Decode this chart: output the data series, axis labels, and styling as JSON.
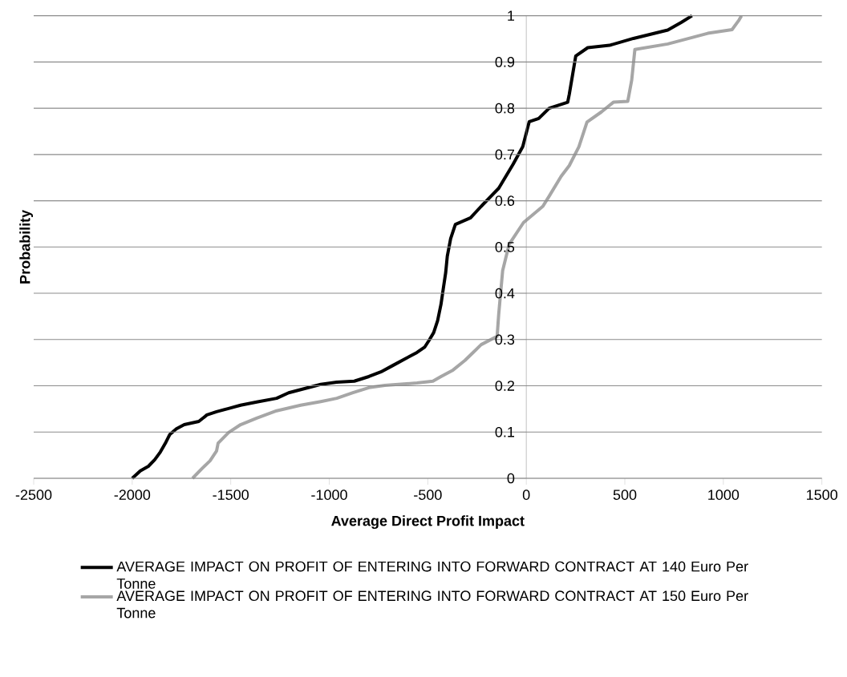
{
  "chart_data": {
    "type": "line",
    "xlabel": "Average Direct Profit Impact",
    "ylabel": "Probability",
    "xlim": [
      -2500,
      1500
    ],
    "xticks": [
      -2500,
      -2000,
      -1500,
      -1000,
      -500,
      0,
      500,
      1000,
      1500
    ],
    "ylim": [
      0,
      1
    ],
    "yticks": [
      0,
      0.1,
      0.2,
      0.3,
      0.4,
      0.5,
      0.6,
      0.7,
      0.8,
      0.9,
      1
    ],
    "grid": "y",
    "legend": "bottom",
    "marker": "none",
    "line_style": "solid",
    "series": [
      {
        "name": "AVERAGE IMPACT ON PROFIT OF ENTERING INTO FORWARD CONTRACT AT 140 Euro Per Tonne",
        "color": "#000000",
        "x": [
          -2000,
          -1959,
          -1918,
          -1886,
          -1857,
          -1829,
          -1809,
          -1776,
          -1736,
          -1662,
          -1621,
          -1572,
          -1511,
          -1450,
          -1368,
          -1267,
          -1206,
          -1125,
          -1043,
          -962,
          -873,
          -799,
          -738,
          -677,
          -616,
          -555,
          -515,
          -494,
          -470,
          -450,
          -433,
          -421,
          -409,
          -401,
          -384,
          -360,
          -283,
          -229,
          -140,
          -67,
          -18,
          15,
          63,
          116,
          210,
          218,
          251,
          312,
          422,
          544,
          718,
          788,
          841
        ],
        "values": [
          0,
          0.016,
          0.026,
          0.04,
          0.057,
          0.078,
          0.095,
          0.107,
          0.116,
          0.123,
          0.137,
          0.144,
          0.151,
          0.158,
          0.165,
          0.173,
          0.185,
          0.194,
          0.203,
          0.208,
          0.21,
          0.22,
          0.23,
          0.244,
          0.258,
          0.272,
          0.284,
          0.298,
          0.315,
          0.341,
          0.376,
          0.411,
          0.445,
          0.48,
          0.518,
          0.549,
          0.563,
          0.588,
          0.627,
          0.679,
          0.717,
          0.771,
          0.778,
          0.8,
          0.813,
          0.83,
          0.913,
          0.931,
          0.936,
          0.951,
          0.969,
          0.986,
          1
        ]
      },
      {
        "name": "AVERAGE IMPACT ON PROFIT OF ENTERING INTO FORWARD CONTRACT AT 150 Euro Per Tonne",
        "color": "#a6a6a6",
        "x": [
          -1694,
          -1646,
          -1605,
          -1572,
          -1564,
          -1511,
          -1450,
          -1368,
          -1267,
          -1145,
          -1043,
          -962,
          -880,
          -799,
          -718,
          -555,
          -474,
          -433,
          -372,
          -311,
          -270,
          -229,
          -148,
          -140,
          -120,
          -87,
          -14,
          84,
          116,
          177,
          218,
          267,
          308,
          381,
          442,
          515,
          535,
          551,
          718,
          921,
          1044,
          1080,
          1092
        ],
        "values": [
          0,
          0.021,
          0.038,
          0.059,
          0.076,
          0.099,
          0.116,
          0.13,
          0.146,
          0.158,
          0.166,
          0.173,
          0.185,
          0.196,
          0.201,
          0.206,
          0.21,
          0.22,
          0.234,
          0.255,
          0.272,
          0.289,
          0.307,
          0.355,
          0.449,
          0.506,
          0.553,
          0.588,
          0.61,
          0.653,
          0.676,
          0.717,
          0.77,
          0.792,
          0.813,
          0.815,
          0.861,
          0.927,
          0.939,
          0.962,
          0.97,
          0.991,
          1
        ]
      }
    ]
  }
}
